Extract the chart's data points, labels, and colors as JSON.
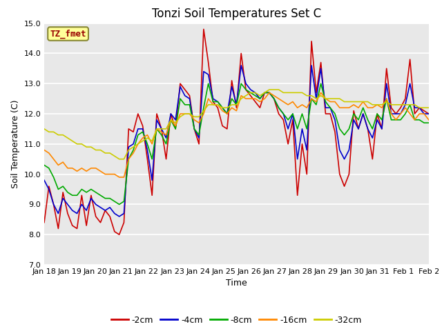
{
  "title": "Tonzi Soil Temperatures Set C",
  "xlabel": "Time",
  "ylabel": "Soil Temperature (C)",
  "ylim": [
    7.0,
    15.0
  ],
  "yticks": [
    7.0,
    8.0,
    9.0,
    10.0,
    11.0,
    12.0,
    13.0,
    14.0,
    15.0
  ],
  "x_labels": [
    "Jan 18",
    "Jan 19",
    "Jan 20",
    "Jan 21",
    "Jan 22",
    "Jan 23",
    "Jan 24",
    "Jan 25",
    "Jan 26",
    "Jan 27",
    "Jan 28",
    "Jan 29",
    "Jan 30",
    "Jan 31",
    "Feb 1",
    "Feb 2"
  ],
  "legend_label": "TZ_fmet",
  "series_order": [
    "-2cm",
    "-4cm",
    "-8cm",
    "-16cm",
    "-32cm"
  ],
  "series": {
    "-2cm": {
      "color": "#cc0000",
      "lw": 1.2
    },
    "-4cm": {
      "color": "#0000cc",
      "lw": 1.2
    },
    "-8cm": {
      "color": "#00aa00",
      "lw": 1.2
    },
    "-16cm": {
      "color": "#ff8800",
      "lw": 1.2
    },
    "-32cm": {
      "color": "#cccc00",
      "lw": 1.2
    }
  },
  "data": {
    "-2cm": [
      8.4,
      9.6,
      9.0,
      8.2,
      9.4,
      8.7,
      8.3,
      8.2,
      9.3,
      8.3,
      9.3,
      8.6,
      8.4,
      8.8,
      8.6,
      8.1,
      8.0,
      8.4,
      11.5,
      11.4,
      12.0,
      11.6,
      10.5,
      9.3,
      12.0,
      11.5,
      10.5,
      12.0,
      11.5,
      13.0,
      12.8,
      12.6,
      11.5,
      11.0,
      14.8,
      13.7,
      12.4,
      12.2,
      11.6,
      11.5,
      13.1,
      12.2,
      14.0,
      12.8,
      12.6,
      12.4,
      12.2,
      12.7,
      12.7,
      12.5,
      12.0,
      11.8,
      11.0,
      11.8,
      9.3,
      11.0,
      10.0,
      14.4,
      12.7,
      13.7,
      12.0,
      12.0,
      11.4,
      10.0,
      9.6,
      10.0,
      12.1,
      11.5,
      12.0,
      11.5,
      10.5,
      12.0,
      11.5,
      13.5,
      12.2,
      12.0,
      12.2,
      12.5,
      13.8,
      12.0,
      12.2,
      12.1,
      12.0
    ],
    "-4cm": [
      9.8,
      9.5,
      9.0,
      8.7,
      9.2,
      9.0,
      8.8,
      8.7,
      9.0,
      8.8,
      9.2,
      9.0,
      8.9,
      8.8,
      8.9,
      8.7,
      8.6,
      8.7,
      10.9,
      11.0,
      11.5,
      11.5,
      10.8,
      9.8,
      11.8,
      11.5,
      11.2,
      12.0,
      11.8,
      12.9,
      12.6,
      12.5,
      11.5,
      11.2,
      13.4,
      13.3,
      12.5,
      12.4,
      12.2,
      12.0,
      12.9,
      12.3,
      13.6,
      13.0,
      12.8,
      12.7,
      12.5,
      12.7,
      12.7,
      12.5,
      12.2,
      12.0,
      11.5,
      12.0,
      10.5,
      11.5,
      10.8,
      13.6,
      12.5,
      13.5,
      12.2,
      12.2,
      11.8,
      10.8,
      10.5,
      10.8,
      11.8,
      11.5,
      12.0,
      11.5,
      11.2,
      11.8,
      11.5,
      13.0,
      12.0,
      12.0,
      12.0,
      12.3,
      13.0,
      12.2,
      12.2,
      12.0,
      12.0
    ],
    "-8cm": [
      10.3,
      10.2,
      9.9,
      9.5,
      9.6,
      9.4,
      9.3,
      9.3,
      9.5,
      9.4,
      9.5,
      9.4,
      9.3,
      9.2,
      9.2,
      9.1,
      9.0,
      9.1,
      10.5,
      10.8,
      11.3,
      11.4,
      11.0,
      10.5,
      11.5,
      11.3,
      11.0,
      11.8,
      11.5,
      12.5,
      12.3,
      12.3,
      11.5,
      11.3,
      12.2,
      13.0,
      12.4,
      12.4,
      12.2,
      12.0,
      12.5,
      12.3,
      13.0,
      12.8,
      12.7,
      12.6,
      12.5,
      12.7,
      12.7,
      12.5,
      12.2,
      12.0,
      11.8,
      12.0,
      11.5,
      12.0,
      11.5,
      12.5,
      12.3,
      13.0,
      12.4,
      12.2,
      12.0,
      11.5,
      11.3,
      11.5,
      12.0,
      11.8,
      12.2,
      11.8,
      11.5,
      12.0,
      11.8,
      12.5,
      11.8,
      11.8,
      11.8,
      12.0,
      12.3,
      11.8,
      11.8,
      11.7,
      11.7
    ],
    "-16cm": [
      10.8,
      10.7,
      10.5,
      10.3,
      10.4,
      10.2,
      10.2,
      10.1,
      10.2,
      10.1,
      10.2,
      10.2,
      10.1,
      10.0,
      10.0,
      10.0,
      9.9,
      9.9,
      10.5,
      10.7,
      11.0,
      11.2,
      11.3,
      11.0,
      11.5,
      11.4,
      11.3,
      11.8,
      11.6,
      12.0,
      12.0,
      12.0,
      11.8,
      11.7,
      12.0,
      12.5,
      12.3,
      12.3,
      12.1,
      12.0,
      12.2,
      12.1,
      12.6,
      12.5,
      12.5,
      12.5,
      12.4,
      12.5,
      12.7,
      12.6,
      12.5,
      12.4,
      12.3,
      12.4,
      12.2,
      12.3,
      12.2,
      12.5,
      12.4,
      12.7,
      12.5,
      12.4,
      12.4,
      12.2,
      12.2,
      12.2,
      12.3,
      12.2,
      12.4,
      12.2,
      12.2,
      12.3,
      12.2,
      12.5,
      12.0,
      11.8,
      12.0,
      12.2,
      12.0,
      11.8,
      12.0,
      12.0,
      11.8
    ],
    "-32cm": [
      11.5,
      11.4,
      11.4,
      11.3,
      11.3,
      11.2,
      11.1,
      11.0,
      11.0,
      10.9,
      10.9,
      10.8,
      10.8,
      10.7,
      10.7,
      10.6,
      10.5,
      10.5,
      10.8,
      10.9,
      11.0,
      11.1,
      11.2,
      11.1,
      11.5,
      11.5,
      11.5,
      11.8,
      11.7,
      11.9,
      12.0,
      12.0,
      11.9,
      11.9,
      12.1,
      12.3,
      12.3,
      12.3,
      12.2,
      12.2,
      12.3,
      12.3,
      12.5,
      12.6,
      12.7,
      12.7,
      12.6,
      12.7,
      12.8,
      12.8,
      12.8,
      12.7,
      12.7,
      12.7,
      12.7,
      12.7,
      12.6,
      12.6,
      12.5,
      12.6,
      12.5,
      12.5,
      12.5,
      12.5,
      12.4,
      12.4,
      12.4,
      12.4,
      12.4,
      12.4,
      12.3,
      12.3,
      12.3,
      12.4,
      12.3,
      12.3,
      12.3,
      12.3,
      12.3,
      12.3,
      12.2,
      12.2,
      12.2
    ]
  },
  "bg_color": "#e8e8e8",
  "fig_color": "#ffffff",
  "grid_color": "#ffffff",
  "title_fontsize": 12,
  "axis_fontsize": 9,
  "tick_fontsize": 8,
  "legend_fontsize": 9,
  "legend_box_facecolor": "#ffff99",
  "legend_box_edgecolor": "#888833",
  "legend_box_textcolor": "#990000"
}
